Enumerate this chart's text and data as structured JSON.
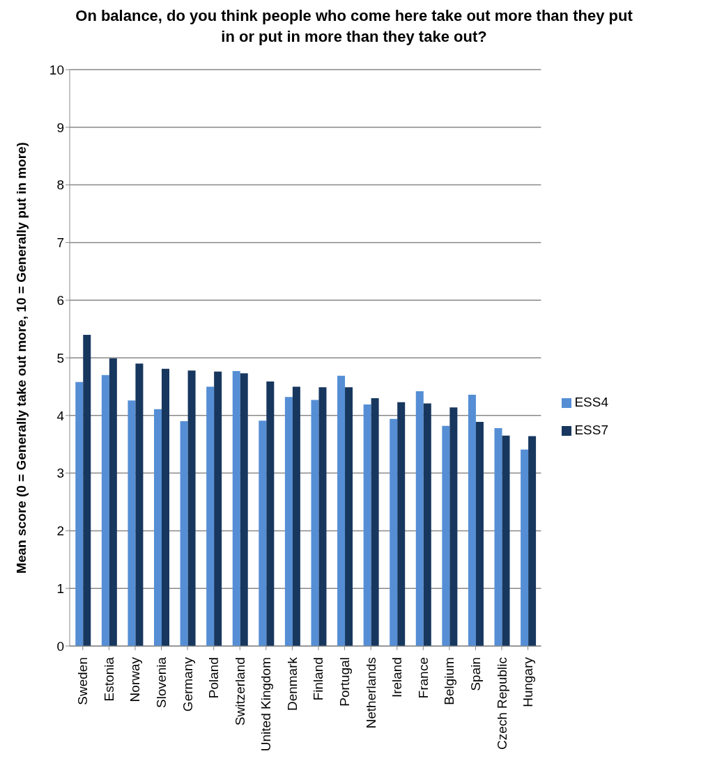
{
  "chart_data": {
    "type": "bar",
    "title": "On balance, do you think people who come here take out more than they put in or put in more than they take out?",
    "ylabel": "Mean score (0 = Generally take out more, 10 = Generally put in more)",
    "categories": [
      "Sweden",
      "Estonia",
      "Norway",
      "Slovenia",
      "Germany",
      "Poland",
      "Switzerland",
      "United Kingdom",
      "Denmark",
      "Finland",
      "Portugal",
      "Netherlands",
      "Ireland",
      "France",
      "Belgium",
      "Spain",
      "Czech Republic",
      "Hungary"
    ],
    "series": [
      {
        "name": "ESS4",
        "color": "#558ed5",
        "values": [
          4.58,
          4.7,
          4.26,
          4.11,
          3.9,
          4.5,
          4.77,
          3.91,
          4.32,
          4.27,
          4.69,
          4.19,
          3.94,
          4.42,
          3.82,
          4.36,
          3.78,
          3.41
        ]
      },
      {
        "name": "ESS7",
        "color": "#17375e",
        "values": [
          5.4,
          4.99,
          4.9,
          4.81,
          4.78,
          4.76,
          4.73,
          4.59,
          4.5,
          4.49,
          4.49,
          4.3,
          4.23,
          4.21,
          4.14,
          3.89,
          3.65,
          3.64
        ]
      }
    ],
    "ylim": [
      0,
      10
    ],
    "yticks": [
      0,
      1,
      2,
      3,
      4,
      5,
      6,
      7,
      8,
      9,
      10
    ],
    "grid": "y",
    "legend": "right"
  }
}
